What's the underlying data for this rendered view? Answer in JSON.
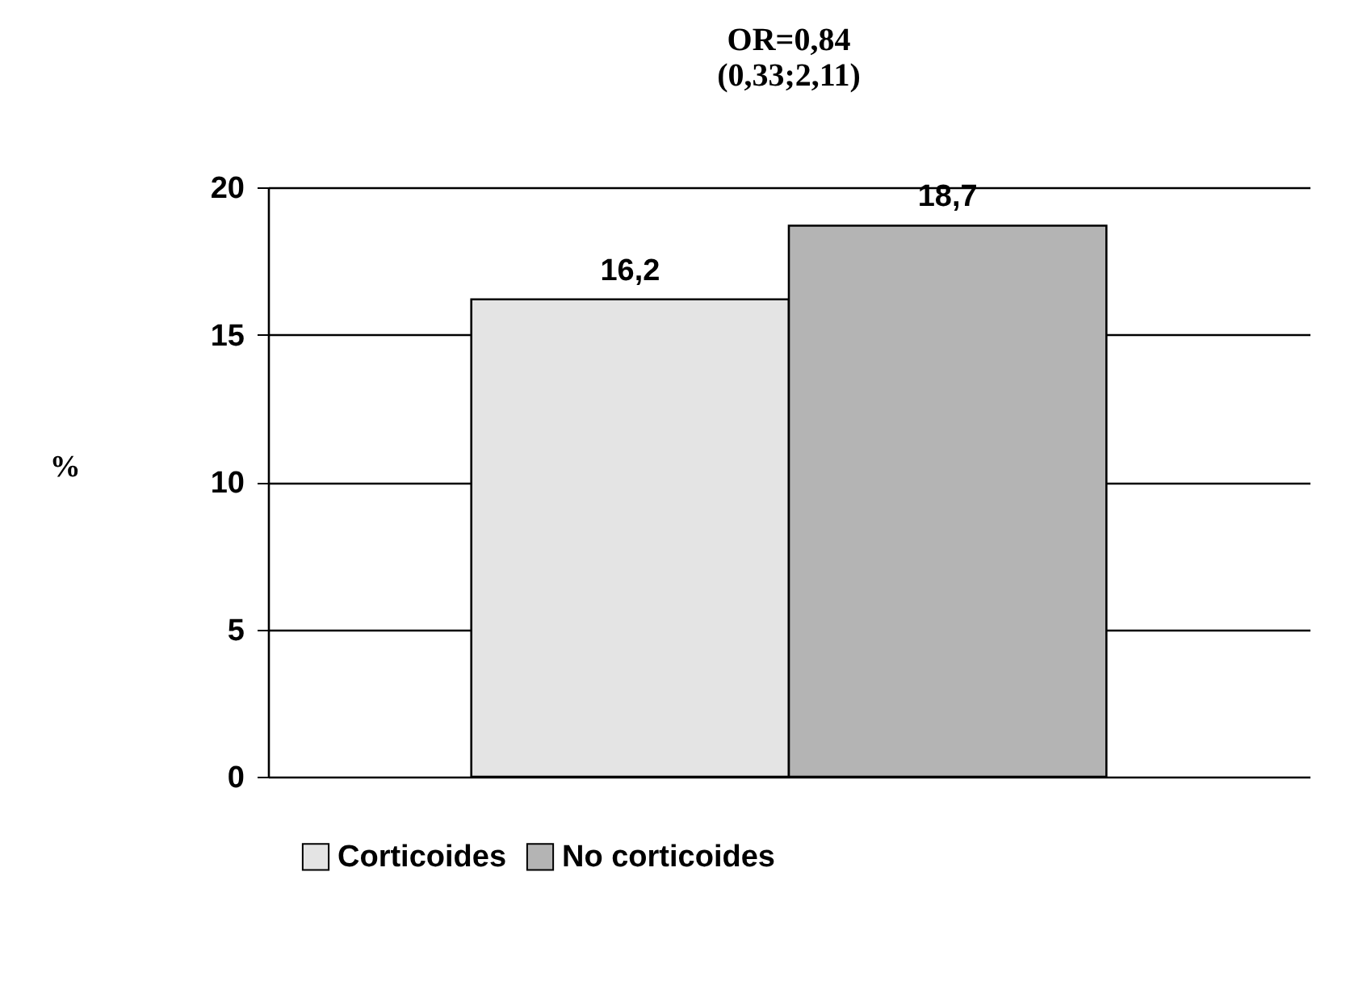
{
  "chart_data": {
    "type": "bar",
    "title": "OR=0,84\n(0,33;2,11)",
    "ylabel": "%",
    "categories": [
      null
    ],
    "series": [
      {
        "name": "Corticoides",
        "color": "#e4e4e4",
        "values": [
          16.2
        ],
        "value_labels": [
          "16,2"
        ]
      },
      {
        "name": "No corticoides",
        "color": "#b4b4b4",
        "values": [
          18.7
        ],
        "value_labels": [
          "18,7"
        ]
      }
    ],
    "ylim": [
      0,
      20
    ],
    "yticks": [
      0,
      5,
      10,
      15,
      20
    ],
    "grid": "y",
    "legend": "bottom"
  }
}
